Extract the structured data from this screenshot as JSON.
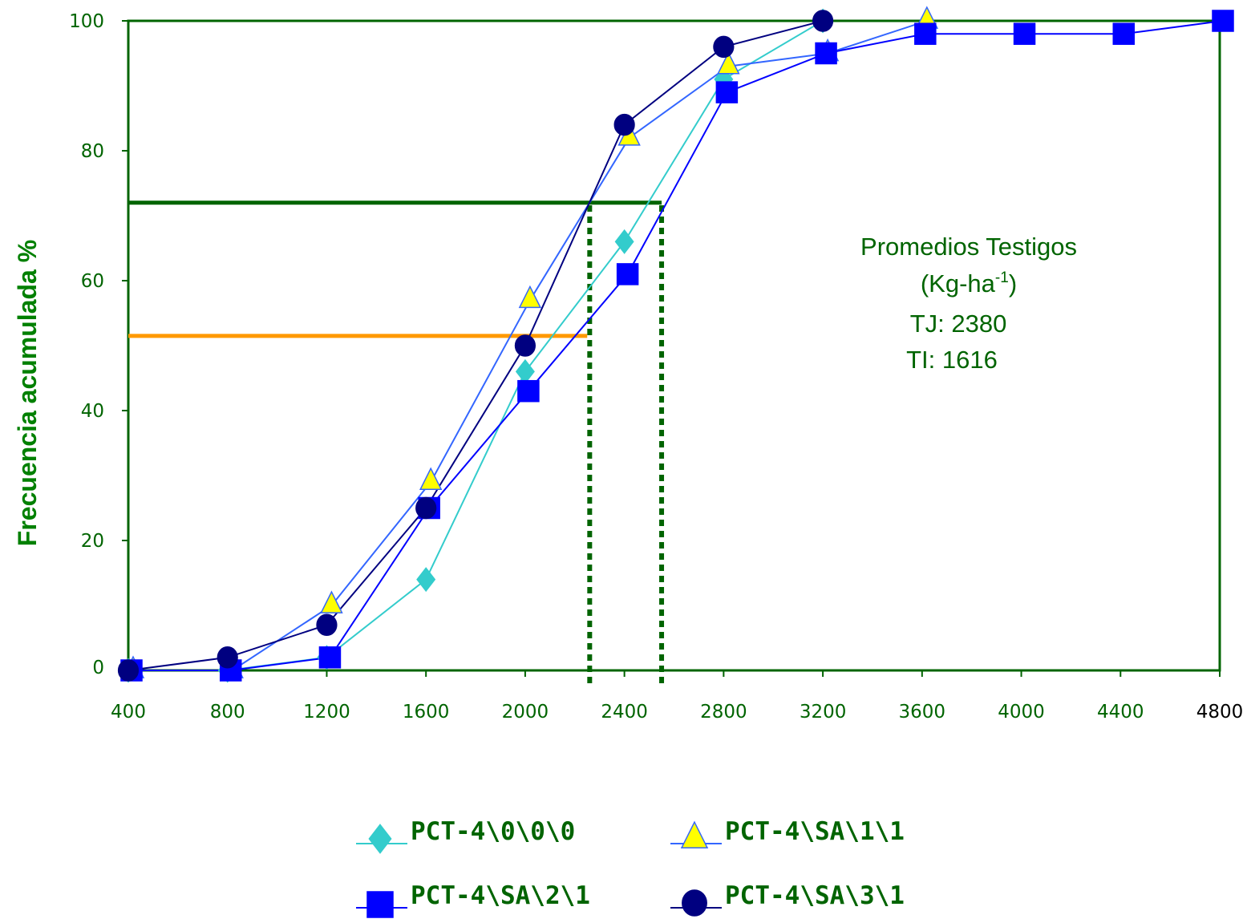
{
  "chart_data": {
    "type": "line",
    "title": "",
    "xlabel": "",
    "ylabel": "Frecuencia acumulada %",
    "x": [
      400,
      800,
      1200,
      1600,
      2000,
      2400,
      2800,
      3200,
      3600,
      4000,
      4400,
      4800
    ],
    "x_ticks": [
      "400",
      "800",
      "1200",
      "1600",
      "2000",
      "2400",
      "2800",
      "3200",
      "3600",
      "4000",
      "4400",
      "4800"
    ],
    "y_ticks": [
      "0",
      "20",
      "40",
      "60",
      "80",
      "100"
    ],
    "xlim": [
      400,
      4800
    ],
    "ylim": [
      0,
      100
    ],
    "grid": false,
    "legend_position": "bottom",
    "series": [
      {
        "name": "PCT-4\\0\\0\\0",
        "marker": "diamond",
        "line_color": "#33CCCC",
        "marker_color": "#33CCCC",
        "values": [
          0,
          0,
          2,
          14,
          46,
          66,
          91,
          100,
          null,
          null,
          null,
          null
        ]
      },
      {
        "name": "PCT-4\\SA\\1\\1",
        "marker": "triangle",
        "line_color": "#3366FF",
        "marker_color": "#FFFF00",
        "values": [
          0,
          0,
          10,
          29,
          57,
          82,
          93,
          95,
          100,
          null,
          null,
          null
        ]
      },
      {
        "name": "PCT-4\\SA\\2\\1",
        "marker": "square",
        "line_color": "#0000FF",
        "marker_color": "#0000FF",
        "values": [
          0,
          0,
          2,
          25,
          43,
          61,
          89,
          95,
          98,
          98,
          98,
          100
        ]
      },
      {
        "name": "PCT-4\\SA\\3\\1",
        "marker": "circle",
        "line_color": "#000080",
        "marker_color": "#000080",
        "values": [
          0,
          2,
          7,
          25,
          50,
          84,
          96,
          100,
          null,
          null,
          null,
          null
        ]
      }
    ],
    "reference_lines": [
      {
        "orientation": "horizontal",
        "y": 72,
        "x_from": 400,
        "x_to": 2550,
        "color": "#006400",
        "style": "solid"
      },
      {
        "orientation": "horizontal",
        "y": 51.5,
        "x_from": 400,
        "x_to": 2250,
        "color": "#FF9900",
        "style": "solid"
      },
      {
        "orientation": "vertical",
        "x": 2260,
        "y_from": 0,
        "y_to": 72,
        "color": "#006400",
        "style": "dotted"
      },
      {
        "orientation": "vertical",
        "x": 2550,
        "y_from": 0,
        "y_to": 72,
        "color": "#006400",
        "style": "dotted"
      }
    ],
    "annotation": {
      "line1": "Promedios Testigos",
      "line2_pre": "(Kg-ha",
      "line2_sup": "-1",
      "line2_post": ")",
      "line3": "TJ: 2380",
      "line4": "TI: 1616"
    },
    "colors": {
      "axis": "#006400",
      "ylabel": "#008000"
    }
  }
}
